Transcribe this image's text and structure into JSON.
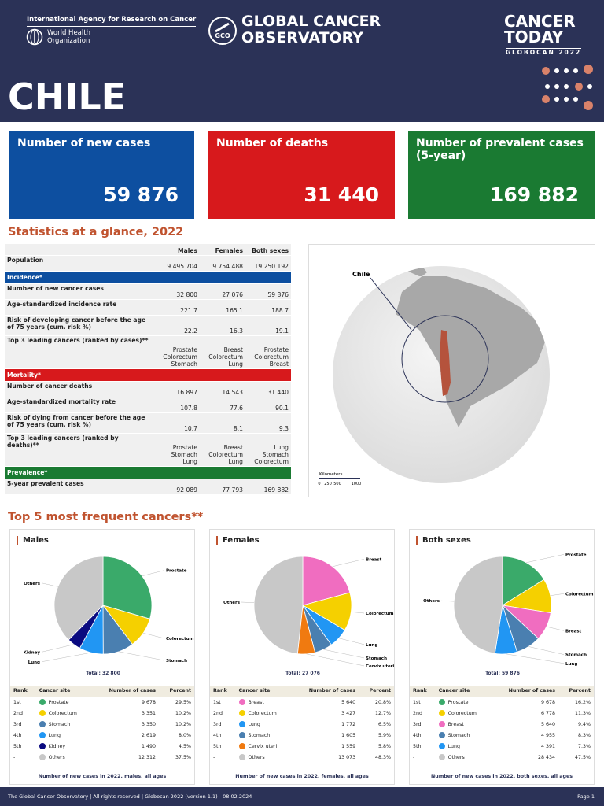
{
  "header": {
    "org": "International Agency for Research on Cancer",
    "who": "World Health Organization",
    "gco": "GLOBAL CANCER OBSERVATORY",
    "brand": "CANCER TODAY",
    "edition": "GLOBOCAN 2022",
    "country": "CHILE"
  },
  "cards": [
    {
      "title": "Number of new cases",
      "value": "59 876",
      "color": "#0d4fa0"
    },
    {
      "title": "Number of deaths",
      "value": "31 440",
      "color": "#d7191c"
    },
    {
      "title": "Number of prevalent cases (5-year)",
      "value": "169 882",
      "color": "#1a7a32"
    }
  ],
  "stats": {
    "title": "Statistics at a glance, 2022",
    "columns": [
      "Males",
      "Females",
      "Both sexes"
    ],
    "population": {
      "label": "Population",
      "values": [
        "9 495 704",
        "9 754 488",
        "19 250 192"
      ]
    },
    "sections": [
      {
        "title": "Incidence*",
        "color": "#0d4fa0",
        "rows": [
          {
            "label": "Number of new cancer cases",
            "values": [
              "32 800",
              "27 076",
              "59 876"
            ]
          },
          {
            "label": "Age-standardized incidence rate",
            "values": [
              "221.7",
              "165.1",
              "188.7"
            ]
          },
          {
            "label": "Risk of developing cancer before the age of 75 years (cum. risk %)",
            "values": [
              "22.2",
              "16.3",
              "19.1"
            ]
          },
          {
            "label": "Top 3 leading cancers (ranked by cases)**",
            "values": [
              [
                "Prostate",
                "Colorectum",
                "Stomach"
              ],
              [
                "Breast",
                "Colorectum",
                "Lung"
              ],
              [
                "Prostate",
                "Colorectum",
                "Breast"
              ]
            ]
          }
        ]
      },
      {
        "title": "Mortality*",
        "color": "#d7191c",
        "rows": [
          {
            "label": "Number of cancer deaths",
            "values": [
              "16 897",
              "14 543",
              "31 440"
            ]
          },
          {
            "label": "Age-standardized mortality rate",
            "values": [
              "107.8",
              "77.6",
              "90.1"
            ]
          },
          {
            "label": "Risk of dying from cancer before the age of 75 years (cum. risk %)",
            "values": [
              "10.7",
              "8.1",
              "9.3"
            ]
          },
          {
            "label": "Top 3 leading cancers (ranked by deaths)**",
            "values": [
              [
                "Prostate",
                "Stomach",
                "Lung"
              ],
              [
                "Breast",
                "Colorectum",
                "Lung"
              ],
              [
                "Lung",
                "Stomach",
                "Colorectum"
              ]
            ]
          }
        ]
      },
      {
        "title": "Prevalence*",
        "color": "#1a7a32",
        "rows": [
          {
            "label": "5-year prevalent cases",
            "values": [
              "92 089",
              "77 793",
              "169 882"
            ]
          }
        ]
      }
    ]
  },
  "map": {
    "label": "Chile",
    "scale_title": "Kilometers",
    "scale_ticks": [
      "0",
      "250",
      "500",
      "1000"
    ]
  },
  "top5": {
    "title": "Top 5 most frequent cancers**",
    "columns": [
      "Rank",
      "Cancer site",
      "Number of cases",
      "Percent"
    ],
    "panels": [
      {
        "title": "Males",
        "total": "Total: 32 800",
        "caption": "Number of new cases in 2022, males, all ages",
        "rows": [
          {
            "rank": "1st",
            "site": "Prostate",
            "color": "#3aaa6a",
            "cases": {
              "value": 9678,
              "label": "9 678"
            },
            "percent": "29.5%"
          },
          {
            "rank": "2nd",
            "site": "Colorectum",
            "color": "#f5d000",
            "cases": {
              "value": 3351,
              "label": "3 351"
            },
            "percent": "10.2%"
          },
          {
            "rank": "3rd",
            "site": "Stomach",
            "color": "#4a7fb0",
            "cases": {
              "value": 3350,
              "label": "3 350"
            },
            "percent": "10.2%"
          },
          {
            "rank": "4th",
            "site": "Lung",
            "color": "#2196f3",
            "cases": {
              "value": 2619,
              "label": "2 619"
            },
            "percent": "8.0%"
          },
          {
            "rank": "5th",
            "site": "Kidney",
            "color": "#0a0a80",
            "cases": {
              "value": 1490,
              "label": "1 490"
            },
            "percent": "4.5%"
          },
          {
            "rank": "-",
            "site": "Others",
            "color": "#c8c8c8",
            "cases": {
              "value": 12312,
              "label": "12 312"
            },
            "percent": "37.5%"
          }
        ]
      },
      {
        "title": "Females",
        "total": "Total: 27 076",
        "caption": "Number of new cases in 2022, females, all ages",
        "rows": [
          {
            "rank": "1st",
            "site": "Breast",
            "color": "#f06dc0",
            "cases": {
              "value": 5640,
              "label": "5 640"
            },
            "percent": "20.8%"
          },
          {
            "rank": "2nd",
            "site": "Colorectum",
            "color": "#f5d000",
            "cases": {
              "value": 3427,
              "label": "3 427"
            },
            "percent": "12.7%"
          },
          {
            "rank": "3rd",
            "site": "Lung",
            "color": "#2196f3",
            "cases": {
              "value": 1772,
              "label": "1 772"
            },
            "percent": "6.5%"
          },
          {
            "rank": "4th",
            "site": "Stomach",
            "color": "#4a7fb0",
            "cases": {
              "value": 1605,
              "label": "1 605"
            },
            "percent": "5.9%"
          },
          {
            "rank": "5th",
            "site": "Cervix uteri",
            "color": "#f07a10",
            "cases": {
              "value": 1559,
              "label": "1 559"
            },
            "percent": "5.8%"
          },
          {
            "rank": "-",
            "site": "Others",
            "color": "#c8c8c8",
            "cases": {
              "value": 13073,
              "label": "13 073"
            },
            "percent": "48.3%"
          }
        ]
      },
      {
        "title": "Both sexes",
        "total": "Total: 59 876",
        "caption": "Number of new cases in 2022, both sexes, all ages",
        "rows": [
          {
            "rank": "1st",
            "site": "Prostate",
            "color": "#3aaa6a",
            "cases": {
              "value": 9678,
              "label": "9 678"
            },
            "percent": "16.2%"
          },
          {
            "rank": "2nd",
            "site": "Colorectum",
            "color": "#f5d000",
            "cases": {
              "value": 6778,
              "label": "6 778"
            },
            "percent": "11.3%"
          },
          {
            "rank": "3rd",
            "site": "Breast",
            "color": "#f06dc0",
            "cases": {
              "value": 5640,
              "label": "5 640"
            },
            "percent": "9.4%"
          },
          {
            "rank": "4th",
            "site": "Stomach",
            "color": "#4a7fb0",
            "cases": {
              "value": 4955,
              "label": "4 955"
            },
            "percent": "8.3%"
          },
          {
            "rank": "5th",
            "site": "Lung",
            "color": "#2196f3",
            "cases": {
              "value": 4391,
              "label": "4 391"
            },
            "percent": "7.3%"
          },
          {
            "rank": "-",
            "site": "Others",
            "color": "#c8c8c8",
            "cases": {
              "value": 28434,
              "label": "28 434"
            },
            "percent": "47.5%"
          }
        ]
      }
    ]
  },
  "footer": {
    "text": "The Global Cancer Observatory | All rights reserved | Globocan 2022 (version 1.1) - 08.02.2024",
    "page": "Page 1"
  }
}
